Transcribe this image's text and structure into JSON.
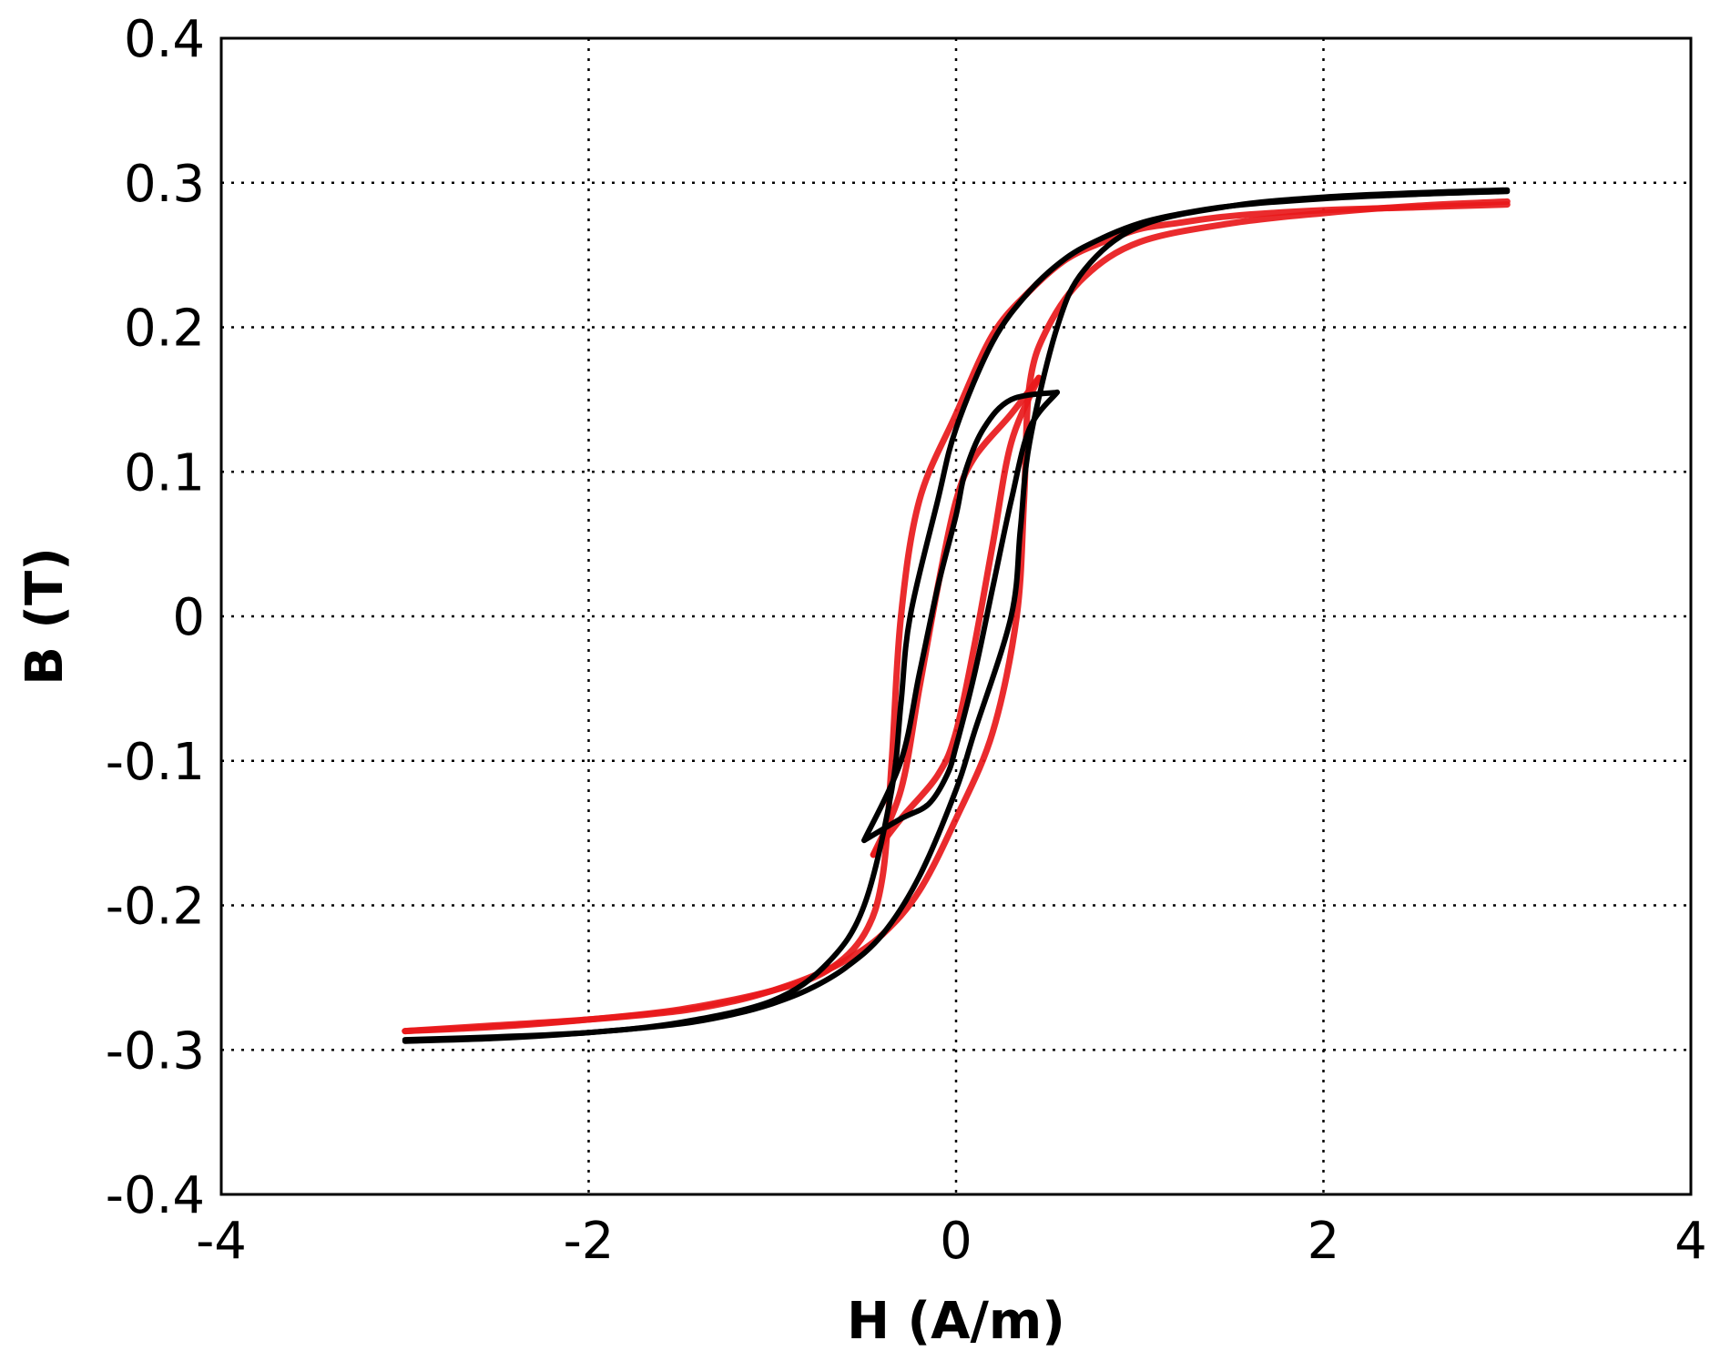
{
  "chart_data": {
    "type": "line",
    "title": "",
    "xlabel": "H (A/m)",
    "ylabel": "B (T)",
    "xlim": [
      -4,
      4
    ],
    "ylim": [
      -0.4,
      0.4
    ],
    "xticks": [
      -4,
      -2,
      0,
      2,
      4
    ],
    "yticks": [
      -0.4,
      -0.3,
      -0.2,
      -0.1,
      0,
      0.1,
      0.2,
      0.3,
      0.4
    ],
    "xtick_labels": [
      "-4",
      "-2",
      "0",
      "2",
      "4"
    ],
    "ytick_labels": [
      "-0.4",
      "-0.3",
      "-0.2",
      "-0.1",
      "0",
      "0.1",
      "0.2",
      "0.3",
      "0.4"
    ],
    "grid": true,
    "legend": "none",
    "series": [
      {
        "color": "#e8191b",
        "segments": [
          {
            "x": [
              -3.0,
              -2.5,
              -2.0,
              -1.5,
              -1.0,
              -0.7,
              -0.5,
              -0.4,
              -0.35,
              -0.3,
              -0.2,
              0.0,
              0.2,
              0.4,
              0.6,
              0.8,
              1.0,
              1.2,
              1.5,
              2.0,
              2.5,
              3.0
            ],
            "y": [
              -0.287,
              -0.284,
              -0.279,
              -0.272,
              -0.259,
              -0.245,
              -0.22,
              -0.18,
              -0.1,
              0.0,
              0.08,
              0.14,
              0.195,
              0.225,
              0.247,
              0.259,
              0.268,
              0.272,
              0.277,
              0.281,
              0.283,
              0.285
            ]
          },
          {
            "x": [
              3.0,
              2.5,
              2.0,
              1.5,
              1.0,
              0.7,
              0.5,
              0.4,
              0.37,
              0.33,
              0.2,
              0.0,
              -0.2,
              -0.4,
              -0.6,
              -0.8,
              -1.0,
              -1.2,
              -1.5,
              -2.0,
              -2.5,
              -3.0
            ],
            "y": [
              0.287,
              0.284,
              0.279,
              0.272,
              0.259,
              0.235,
              0.2,
              0.16,
              0.08,
              0.0,
              -0.08,
              -0.14,
              -0.19,
              -0.22,
              -0.238,
              -0.25,
              -0.259,
              -0.266,
              -0.273,
              -0.279,
              -0.283,
              -0.287
            ]
          },
          {
            "x": [
              -0.45,
              -0.3,
              -0.1,
              0.0,
              0.1,
              0.2,
              0.3,
              0.45
            ],
            "y": [
              -0.165,
              -0.14,
              -0.11,
              -0.08,
              -0.02,
              0.05,
              0.12,
              0.165
            ]
          },
          {
            "x": [
              0.45,
              0.3,
              0.1,
              0.0,
              -0.1,
              -0.2,
              -0.3,
              -0.45
            ],
            "y": [
              0.165,
              0.14,
              0.11,
              0.08,
              0.02,
              -0.05,
              -0.12,
              -0.165
            ]
          }
        ]
      },
      {
        "color": "#000000",
        "segments": [
          {
            "x": [
              -3.0,
              -2.5,
              -2.0,
              -1.5,
              -1.0,
              -0.7,
              -0.5,
              -0.35,
              -0.3,
              -0.25,
              -0.1,
              0.0,
              0.2,
              0.4,
              0.6,
              0.8,
              1.0,
              1.2,
              1.5,
              2.0,
              2.5,
              3.0
            ],
            "y": [
              -0.293,
              -0.291,
              -0.288,
              -0.281,
              -0.266,
              -0.24,
              -0.2,
              -0.12,
              -0.06,
              0.0,
              0.08,
              0.13,
              0.19,
              0.225,
              0.248,
              0.262,
              0.272,
              0.278,
              0.284,
              0.289,
              0.292,
              0.294
            ]
          },
          {
            "x": [
              3.0,
              2.5,
              2.0,
              1.5,
              1.0,
              0.7,
              0.55,
              0.4,
              0.35,
              0.3,
              0.1,
              0.0,
              -0.2,
              -0.4,
              -0.6,
              -0.8,
              -1.0,
              -1.2,
              -1.5,
              -2.0,
              -2.5,
              -3.0
            ],
            "y": [
              0.295,
              0.293,
              0.29,
              0.284,
              0.27,
              0.24,
              0.2,
              0.12,
              0.06,
              0.0,
              -0.08,
              -0.12,
              -0.18,
              -0.22,
              -0.243,
              -0.258,
              -0.268,
              -0.275,
              -0.282,
              -0.288,
              -0.292,
              -0.294
            ]
          },
          {
            "x": [
              -0.5,
              -0.3,
              -0.15,
              -0.05,
              0.0,
              0.1,
              0.2,
              0.3,
              0.4,
              0.55
            ],
            "y": [
              -0.155,
              -0.14,
              -0.13,
              -0.11,
              -0.09,
              -0.04,
              0.02,
              0.08,
              0.13,
              0.155
            ]
          },
          {
            "x": [
              0.55,
              0.3,
              0.15,
              0.05,
              0.0,
              -0.1,
              -0.2,
              -0.3,
              -0.5
            ],
            "y": [
              0.155,
              0.15,
              0.13,
              0.1,
              0.07,
              0.02,
              -0.04,
              -0.1,
              -0.155
            ]
          }
        ]
      }
    ]
  }
}
